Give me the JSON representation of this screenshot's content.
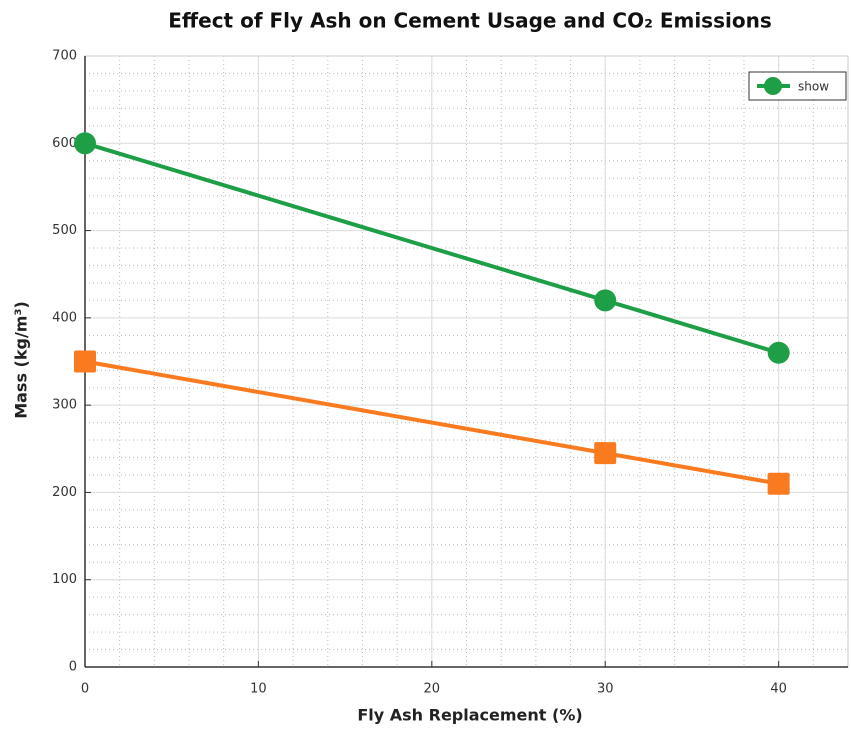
{
  "chart_data": {
    "type": "line",
    "title": "Effect of Fly Ash on Cement Usage and CO₂ Emissions",
    "xlabel": "Fly Ash Replacement (%)",
    "ylabel": "Mass (kg/m³)",
    "x": [
      0,
      30,
      40
    ],
    "series": [
      {
        "name": "show",
        "color": "#1f9e48",
        "marker": "circle",
        "values": [
          600,
          420,
          360
        ]
      },
      {
        "color": "#f97a1f",
        "marker": "square",
        "values": [
          350,
          245,
          210
        ]
      }
    ],
    "xlim": [
      0,
      44
    ],
    "xticks": [
      0,
      10,
      20,
      30,
      40
    ],
    "ylim": [
      0,
      700
    ],
    "yticks": [
      0,
      100,
      200,
      300,
      400,
      500,
      600,
      700
    ],
    "grid": true,
    "minor_grid": true,
    "legend": "upper right"
  }
}
